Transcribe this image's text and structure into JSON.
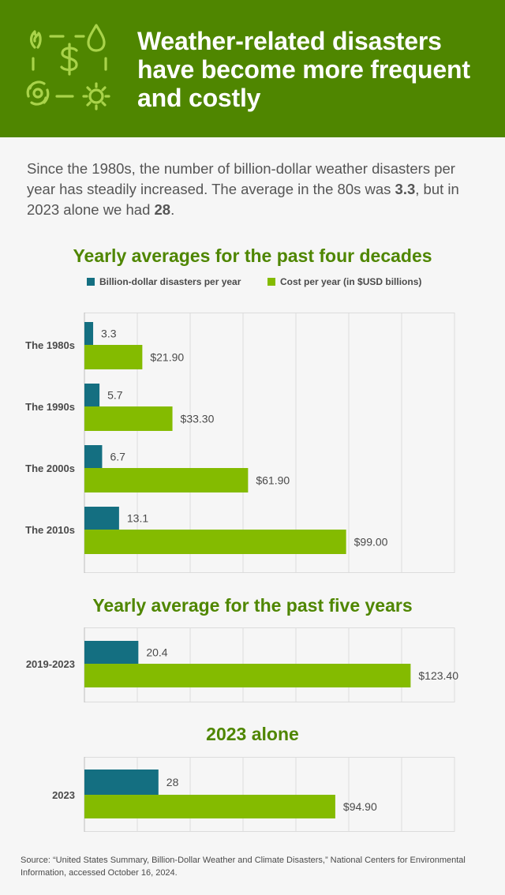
{
  "header": {
    "title_lines": [
      "Weather-related disasters",
      "have become more frequent",
      "and costly"
    ],
    "icon": "disaster-cost-icon"
  },
  "intro": {
    "part1": "Since the 1980s, the number of billion-dollar weather disasters per year has steadily increased. The average in the 80s was ",
    "value1": "3.3",
    "part2": ", but in 2023 alone we had ",
    "value2": "28",
    "part3": "."
  },
  "legend": {
    "count_label": "Billion-dollar disasters per year",
    "cost_label": "Cost per year (in $USD billions)"
  },
  "colors": {
    "header_bg": "#4f8600",
    "title_green": "#4f8600",
    "count_bar": "#146f81",
    "cost_bar": "#84bb00"
  },
  "chart_data": [
    {
      "type": "bar",
      "orientation": "horizontal",
      "title": "Yearly averages for the past four decades",
      "categories": [
        "The 1980s",
        "The 1990s",
        "The 2000s",
        "The 2010s"
      ],
      "series": [
        {
          "name": "Billion-dollar disasters per year",
          "values": [
            3.3,
            5.7,
            6.7,
            13.1
          ],
          "labels": [
            "3.3",
            "5.7",
            "6.7",
            "13.1"
          ]
        },
        {
          "name": "Cost per year (in $USD billions)",
          "values": [
            21.9,
            33.3,
            61.9,
            99.0
          ],
          "labels": [
            "$21.90",
            "$33.30",
            "$61.90",
            "$99.00"
          ]
        }
      ],
      "xlim": [
        0,
        140
      ],
      "grid": true,
      "legend": "top"
    },
    {
      "type": "bar",
      "orientation": "horizontal",
      "title": "Yearly average for the past five years",
      "categories": [
        "2019-2023"
      ],
      "series": [
        {
          "name": "Billion-dollar disasters per year",
          "values": [
            20.4
          ],
          "labels": [
            "20.4"
          ]
        },
        {
          "name": "Cost per year (in $USD billions)",
          "values": [
            123.4
          ],
          "labels": [
            "$123.40"
          ]
        }
      ],
      "xlim": [
        0,
        140
      ],
      "grid": true
    },
    {
      "type": "bar",
      "orientation": "horizontal",
      "title": "2023 alone",
      "categories": [
        "2023"
      ],
      "series": [
        {
          "name": "Billion-dollar disasters per year",
          "values": [
            28
          ],
          "labels": [
            "28"
          ]
        },
        {
          "name": "Cost per year (in $USD billions)",
          "values": [
            94.9
          ],
          "labels": [
            "$94.90"
          ]
        }
      ],
      "xlim": [
        0,
        140
      ],
      "grid": true
    }
  ],
  "source": "Source: “United States Summary, Billion-Dollar Weather and Climate Disasters,” National Centers for Environmental Information, accessed October 16, 2024."
}
